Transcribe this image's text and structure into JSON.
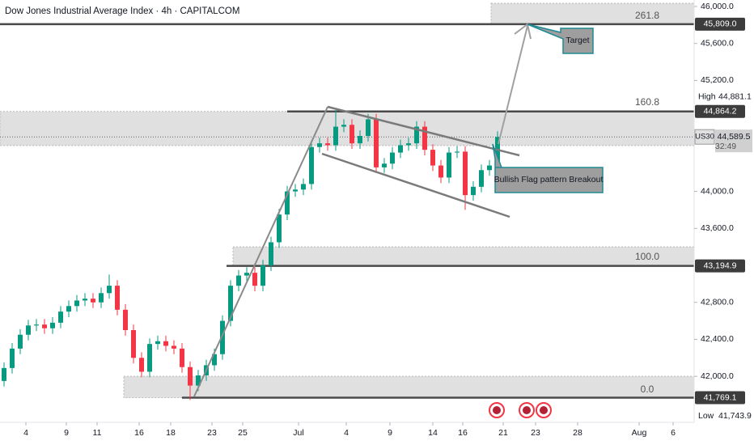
{
  "chart_data": {
    "type": "candlestick",
    "title": "Dow Jones Industrial Average Index · 4h · CAPITALCOM",
    "up_color": "#089981",
    "down_color": "#f23645",
    "xlim": [
      -0.5,
      85.3
    ],
    "ylim": [
      41520,
      46070
    ],
    "xticks": [
      {
        "value": 2.7,
        "label": "4"
      },
      {
        "value": 7.7,
        "label": "9"
      },
      {
        "value": 11.5,
        "label": "11"
      },
      {
        "value": 16.7,
        "label": "16"
      },
      {
        "value": 20.6,
        "label": "18"
      },
      {
        "value": 25.7,
        "label": "23"
      },
      {
        "value": 29.5,
        "label": "25"
      },
      {
        "value": 36.4,
        "label": "Jul"
      },
      {
        "value": 42.3,
        "label": "4"
      },
      {
        "value": 47.7,
        "label": "9"
      },
      {
        "value": 53,
        "label": "14"
      },
      {
        "value": 56.7,
        "label": "16"
      },
      {
        "value": 61.7,
        "label": "21"
      },
      {
        "value": 65.7,
        "label": "23"
      },
      {
        "value": 70.9,
        "label": "28"
      },
      {
        "value": 78.5,
        "label": "Aug"
      },
      {
        "value": 82.7,
        "label": "6"
      }
    ],
    "yticks": [
      {
        "value": 46000,
        "label": "46,000.0"
      },
      {
        "value": 45600,
        "label": "45,600.0"
      },
      {
        "value": 45200,
        "label": "45,200.0"
      },
      {
        "value": 44000,
        "label": "44,000.0"
      },
      {
        "value": 43600,
        "label": "43,600.0"
      },
      {
        "value": 42800,
        "label": "42,800.0"
      },
      {
        "value": 42400,
        "label": "42,400.0"
      },
      {
        "value": 42000,
        "label": "42,000.0"
      }
    ],
    "open": [
      41950,
      42090,
      42300,
      42450,
      42550,
      42560,
      42520,
      42580,
      42700,
      42760,
      42820,
      42840,
      42800,
      42900,
      42980,
      42720,
      42500,
      42200,
      42050,
      42350,
      42380,
      42330,
      42300,
      42100,
      41900,
      42010,
      42120,
      42240,
      42600,
      42980,
      43090,
      43120,
      42980,
      43200,
      43450,
      43750,
      44000,
      44020,
      44080,
      44480,
      44520,
      44500,
      44700,
      44720,
      44520,
      44600,
      44780,
      44260,
      44300,
      44420,
      44500,
      44520,
      44700,
      44450,
      44280,
      44150,
      44420,
      44430,
      43960,
      44050,
      44230,
      44280
    ],
    "high": [
      42150,
      42360,
      42510,
      42610,
      42620,
      42620,
      42640,
      42760,
      42820,
      42880,
      42900,
      42900,
      42960,
      43100,
      43040,
      42780,
      42560,
      42260,
      42410,
      42440,
      42440,
      42390,
      42360,
      42160,
      42070,
      42180,
      42300,
      42660,
      43040,
      43150,
      43180,
      43180,
      43260,
      43510,
      43810,
      44060,
      44080,
      44140,
      44540,
      44580,
      44580,
      44881.1,
      44780,
      44780,
      44660,
      44840,
      44840,
      44360,
      44480,
      44560,
      44580,
      44760,
      44760,
      44510,
      44340,
      44480,
      44490,
      44490,
      44110,
      44290,
      44340,
      44650
    ],
    "low": [
      41890,
      42030,
      42240,
      42390,
      42490,
      42460,
      42460,
      42520,
      42640,
      42700,
      42760,
      42740,
      42740,
      42840,
      42660,
      42440,
      42140,
      41990,
      41990,
      42290,
      42270,
      42240,
      42040,
      41743.9,
      41840,
      41950,
      42060,
      42180,
      42540,
      42920,
      43030,
      42920,
      42920,
      43140,
      43390,
      43690,
      43940,
      43960,
      44020,
      44420,
      44440,
      44440,
      44640,
      44460,
      44460,
      44540,
      44200,
      44200,
      44240,
      44360,
      44440,
      44460,
      44390,
      44220,
      44090,
      44090,
      44360,
      43800,
      43900,
      43990,
      44170,
      44220
    ],
    "close": [
      42090,
      42300,
      42450,
      42550,
      42560,
      42520,
      42580,
      42700,
      42760,
      42820,
      42840,
      42800,
      42900,
      42980,
      42720,
      42500,
      42200,
      42050,
      42350,
      42380,
      42330,
      42300,
      42100,
      41900,
      42010,
      42120,
      42240,
      42600,
      42980,
      43090,
      43120,
      42980,
      43200,
      43450,
      43750,
      44000,
      44020,
      44080,
      44480,
      44520,
      44500,
      44700,
      44720,
      44520,
      44600,
      44780,
      44260,
      44300,
      44420,
      44500,
      44520,
      44700,
      44450,
      44280,
      44150,
      44420,
      44430,
      43960,
      44050,
      44230,
      44280,
      44589.5
    ],
    "levels": [
      {
        "label": "261.8",
        "price": {
          "value": 45809.0,
          "label": "45,809.0"
        },
        "zone": [
          46035,
          45809.0
        ],
        "line_from": -0.5,
        "zone_from": 60.2
      },
      {
        "label": "160.8",
        "price": {
          "value": 44864.2,
          "label": "44,864.2"
        },
        "zone": [
          44864.2,
          44495
        ],
        "line_from": 35,
        "zone_from": -0.5
      },
      {
        "label": "100.0",
        "price": {
          "value": 43194.9,
          "label": "43,194.9"
        },
        "zone": [
          43400,
          43194.9
        ],
        "line_from": 27.5,
        "zone_from": 28.3
      },
      {
        "label": "0.0",
        "price": {
          "value": 41769.1,
          "label": "41,769.1"
        },
        "zone": [
          42000,
          41769.1
        ],
        "line_from": 22,
        "zone_from": 14.8
      }
    ],
    "last": {
      "value": 44589.5,
      "label": "44,589.5"
    },
    "symbol": "US30",
    "countdown": "32:49",
    "high_marker": {
      "label": "High",
      "price": {
        "value": 44881.1,
        "label": "44,881.1"
      }
    },
    "low_marker": {
      "label": "Low",
      "price": {
        "value": 41743.9,
        "label": "41,743.9"
      }
    },
    "annotations": [
      "Target",
      "Bullish Flag pattern Breakout"
    ]
  }
}
